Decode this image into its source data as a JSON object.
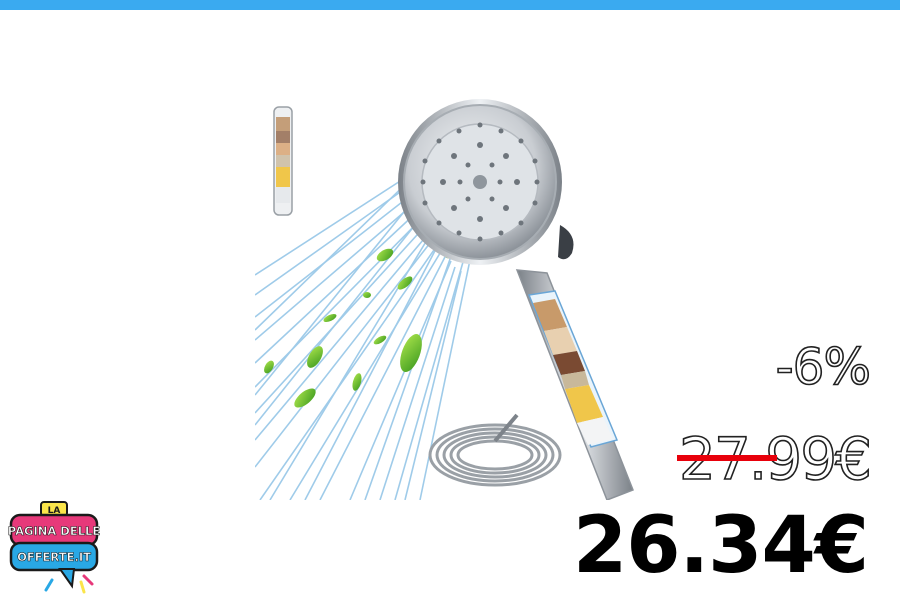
{
  "colors": {
    "top_bar": "#3aaaf0",
    "strike": "#e8000b",
    "logo_pink": "#e7397a",
    "logo_blue": "#29a8e5",
    "logo_outline": "#1a1a1a"
  },
  "product": {
    "image_icon": "shower-head-with-filter-and-hose"
  },
  "price": {
    "discount": "-6%",
    "old": "27.99€",
    "new": "26.34€"
  },
  "logo": {
    "line1": "LA",
    "line2": "PAGINA DELLE",
    "line3": "OFFERTE.IT"
  }
}
